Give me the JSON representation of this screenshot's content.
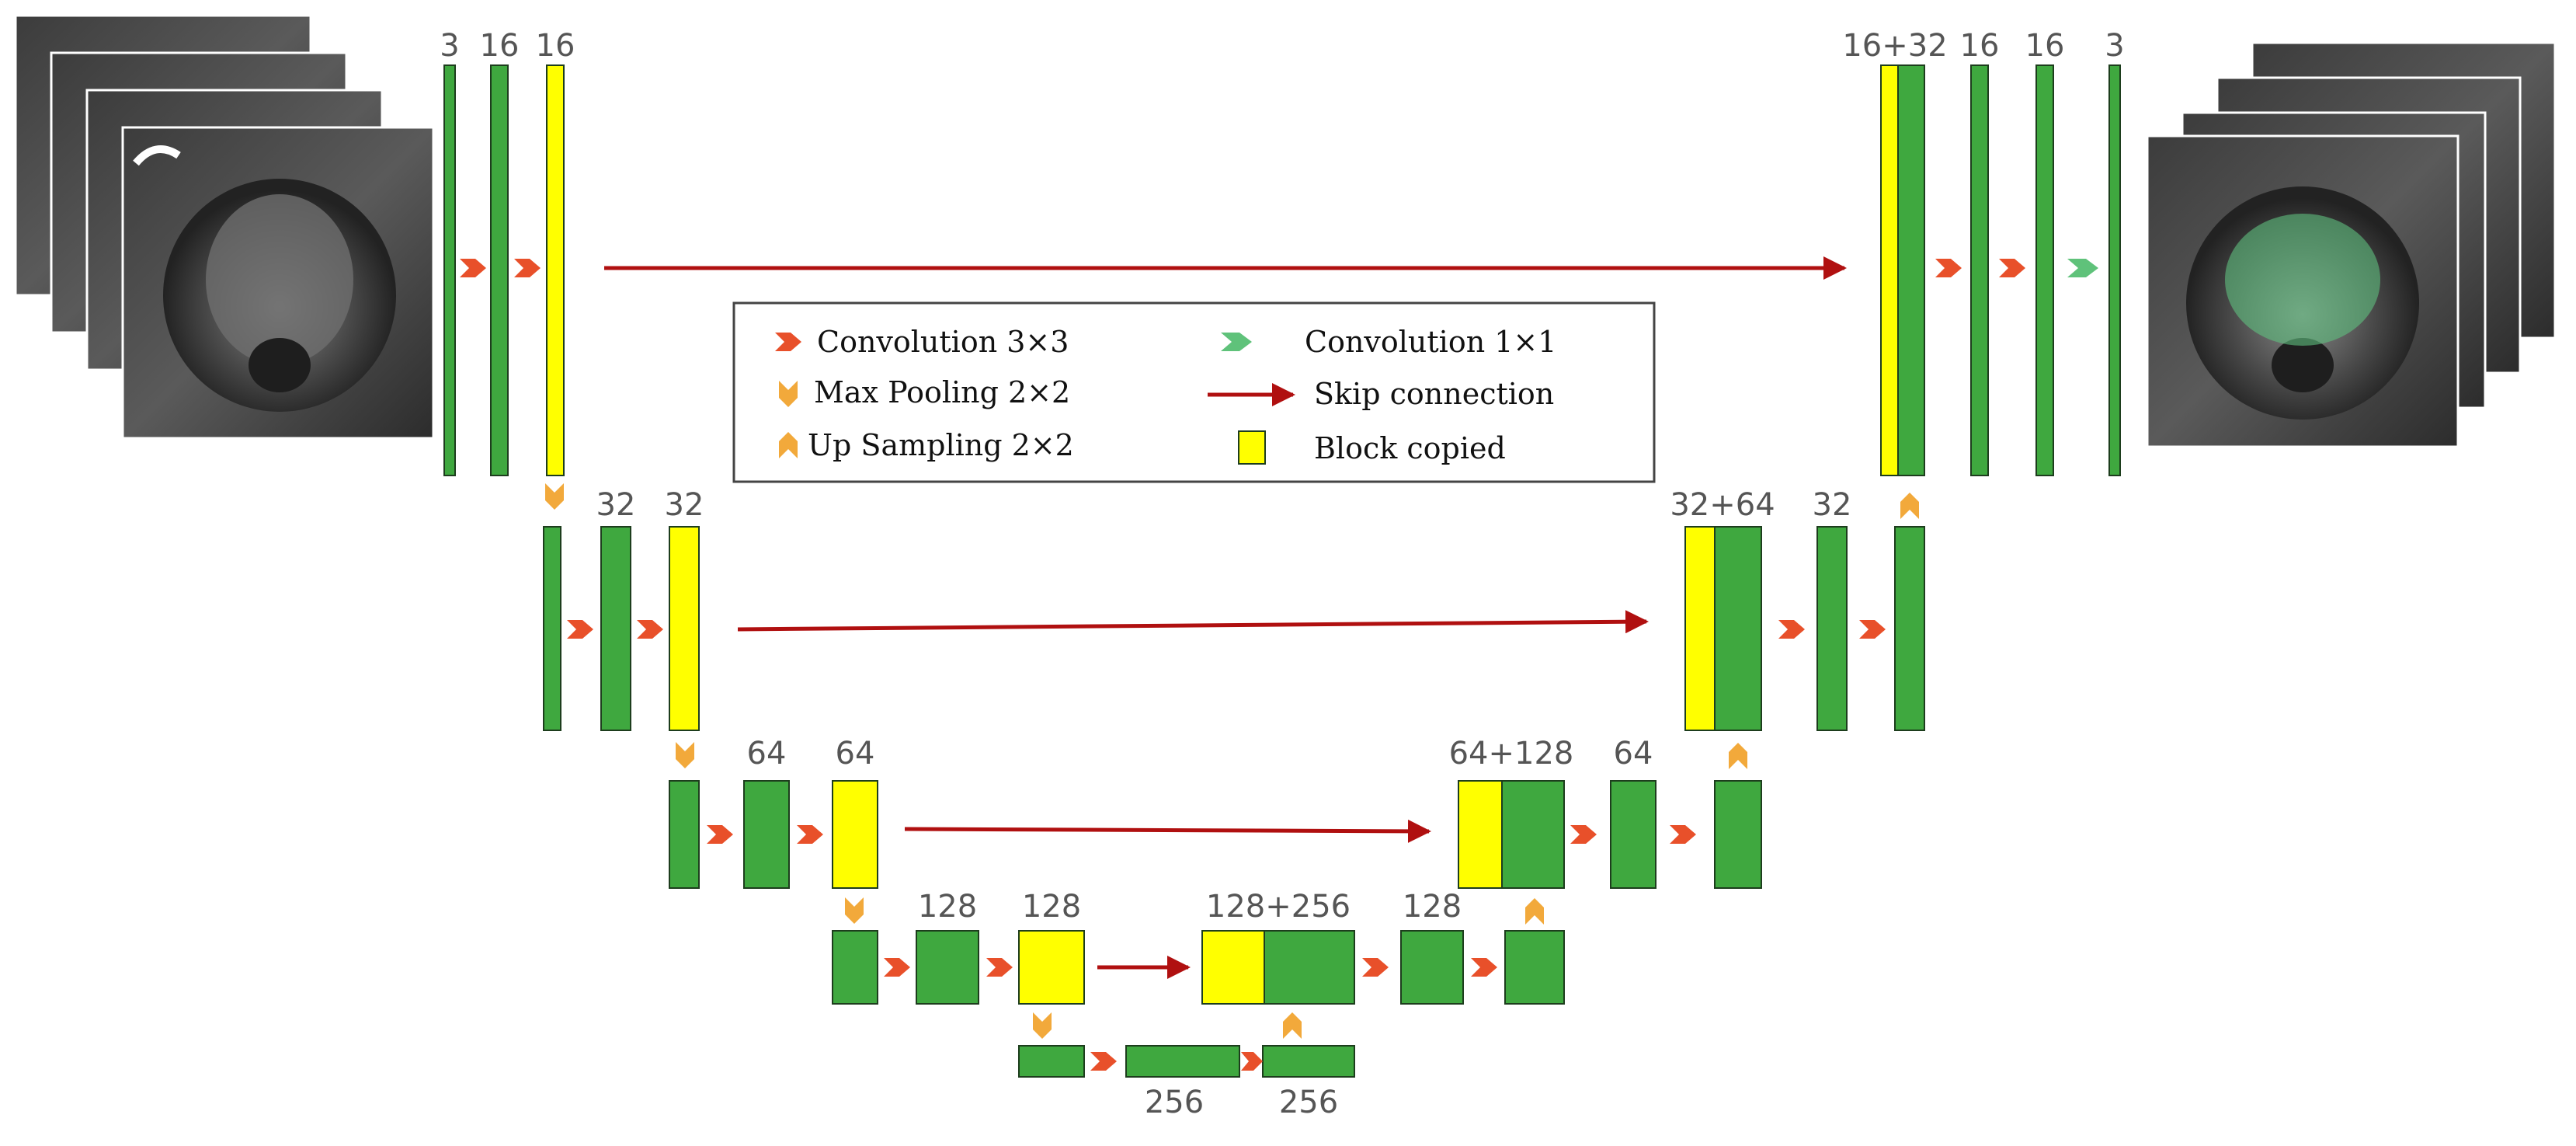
{
  "colors": {
    "conv_block": "#3fa83f",
    "copied_block": "#ffff00",
    "block_stroke": "#1d3d1d",
    "conv3x3_arrow": "#e8502a",
    "conv1x1_arrow": "#5fc27a",
    "pool_arrow": "#f2a93b",
    "skip_connection": "#b01010",
    "mask_overlay": "#5fbf7f"
  },
  "labels": {
    "enc1_in": "3",
    "enc1_c1": "16",
    "enc1_c2": "16",
    "enc2_c1": "32",
    "enc2_c2": "32",
    "enc3_c1": "64",
    "enc3_c2": "64",
    "enc4_c1": "128",
    "enc4_c2": "128",
    "bott_c1": "256",
    "bott_c2": "256",
    "dec4_cat": "128+256",
    "dec4_c": "128",
    "dec3_cat": "64+128",
    "dec3_c": "64",
    "dec2_cat": "32+64",
    "dec2_c": "32",
    "dec1_cat": "16+32",
    "dec1_c1": "16",
    "dec1_c2": "16",
    "out": "3"
  },
  "legend": {
    "conv3x3": "Convolution 3×3",
    "maxpool": "Max Pooling 2×2",
    "upsample": "Up Sampling 2×2",
    "conv1x1": "Convolution 1×1",
    "skip": "Skip connection",
    "copied": "Block copied"
  }
}
